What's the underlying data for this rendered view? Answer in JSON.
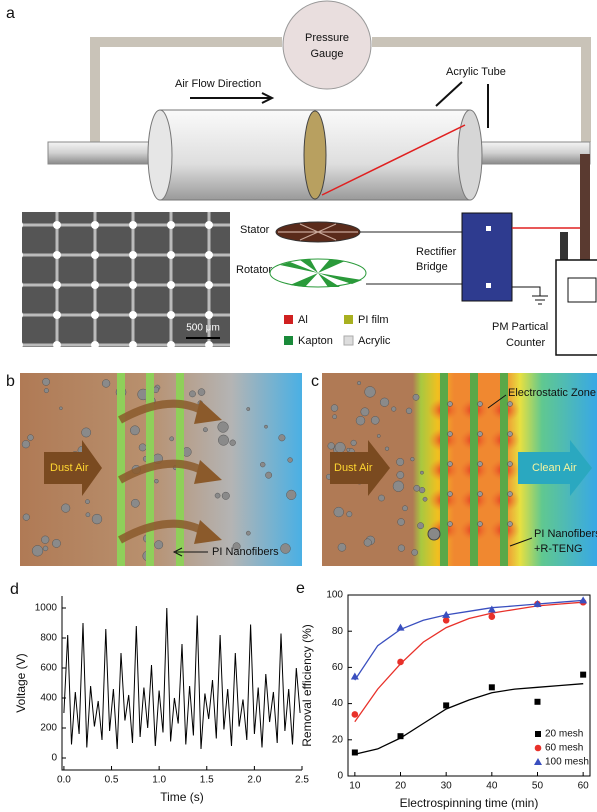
{
  "panel_a": {
    "label": "a",
    "gauge": [
      "Pressure",
      "Gauge"
    ],
    "air_flow": "Air Flow Direction",
    "tube": "Acrylic Tube",
    "stator": "Stator",
    "rotator": "Rotator",
    "rectifier": [
      "Rectifier",
      "Bridge"
    ],
    "scale_bar": "500 μm",
    "materials": [
      "Al",
      "PI film",
      "Kapton",
      "Acrylic"
    ],
    "counter": [
      "PM Partical",
      "Counter"
    ]
  },
  "panel_b": {
    "label": "b",
    "inlet": "Dust Air",
    "fiber": "PI Nanofibers"
  },
  "panel_c": {
    "label": "c",
    "inlet": "Dust Air",
    "outlet": "Clean Air",
    "zone": "Electrostatic Zone",
    "fiber": [
      "PI Nanofibers",
      "+R-TENG"
    ]
  },
  "chart_data": [
    {
      "type": "line",
      "panel_label": "d",
      "x_label": "Time (s)",
      "y_label": "Voltage (V)",
      "color": "#000000",
      "x": [
        0,
        0.04,
        0.08,
        0.12,
        0.16,
        0.2,
        0.24,
        0.28,
        0.32,
        0.36,
        0.4,
        0.44,
        0.48,
        0.52,
        0.56,
        0.6,
        0.64,
        0.68,
        0.72,
        0.76,
        0.8,
        0.84,
        0.88,
        0.92,
        0.96,
        1,
        1.04,
        1.08,
        1.12,
        1.16,
        1.2,
        1.24,
        1.28,
        1.32,
        1.36,
        1.4,
        1.44,
        1.48,
        1.52,
        1.56,
        1.6,
        1.64,
        1.68,
        1.72,
        1.76,
        1.8,
        1.84,
        1.88,
        1.92,
        1.96,
        2,
        2.04,
        2.08,
        2.12,
        2.16,
        2.2,
        2.24,
        2.28,
        2.32,
        2.36,
        2.4,
        2.44,
        2.48
      ],
      "values": [
        300,
        820,
        90,
        440,
        160,
        900,
        70,
        480,
        210,
        380,
        120,
        860,
        180,
        460,
        60,
        700,
        250,
        420,
        100,
        880,
        140,
        470,
        200,
        620,
        80,
        450,
        170,
        1000,
        110,
        400,
        230,
        760,
        90,
        480,
        150,
        950,
        60,
        430,
        260,
        520,
        130,
        820,
        190,
        460,
        80,
        700,
        210,
        390,
        120,
        890,
        160,
        470,
        70,
        560,
        240,
        440,
        100,
        830,
        180,
        460,
        90,
        600,
        300
      ],
      "xlim": [
        -0.02,
        2.5
      ],
      "xticks": [
        {
          "value": 0,
          "label": "0.0"
        },
        0.5,
        {
          "value": 1,
          "label": "1.0"
        },
        1.5,
        {
          "value": 2,
          "label": "2.0"
        },
        2.5
      ],
      "ylim": [
        -80,
        1080
      ],
      "yticks": [
        0,
        200,
        400,
        600,
        800,
        1000
      ]
    },
    {
      "type": "scatter",
      "panel_label": "e",
      "x_label": "Electrospinning time (min)",
      "y_label": "Removal efficiency (%)",
      "x": [
        10,
        20,
        30,
        40,
        50,
        60
      ],
      "fit_x": [
        10,
        15,
        20,
        25,
        30,
        35,
        40,
        45,
        50,
        55,
        60
      ],
      "series": [
        {
          "name": "20 mesh",
          "color": "#000000",
          "marker": "square",
          "values": [
            13,
            22,
            39,
            49,
            41,
            56
          ],
          "fit_values": [
            12,
            15,
            21,
            29,
            37,
            42,
            46,
            48,
            49,
            50,
            51
          ]
        },
        {
          "name": "60 mesh",
          "color": "#e8312a",
          "marker": "circle",
          "values": [
            34,
            63,
            86,
            88,
            95,
            96
          ],
          "fit_values": [
            30,
            48,
            62,
            74,
            82,
            87,
            90,
            92,
            94,
            95,
            96
          ]
        },
        {
          "name": "100 mesh",
          "color": "#3a4fbf",
          "marker": "triangle",
          "values": [
            55,
            82,
            89,
            92,
            95,
            97
          ],
          "fit_values": [
            53,
            72,
            81,
            86,
            89,
            91,
            93,
            94,
            95,
            96,
            97
          ]
        }
      ],
      "xlim": [
        8.5,
        61.5
      ],
      "xticks": [
        10,
        20,
        30,
        40,
        50,
        60
      ],
      "ylim": [
        0,
        100
      ],
      "yticks": [
        0,
        20,
        40,
        60,
        80,
        100
      ],
      "legend": "lower right"
    }
  ]
}
